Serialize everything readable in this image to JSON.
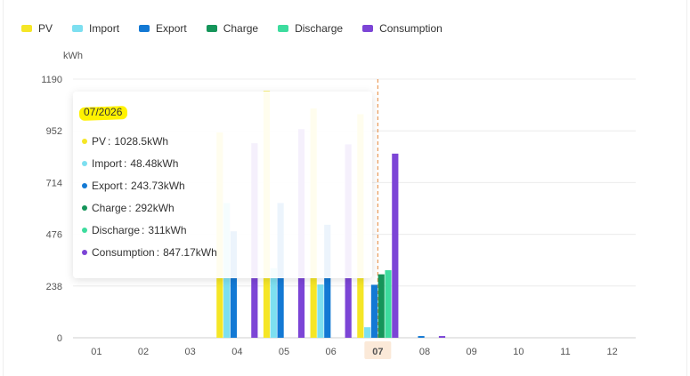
{
  "legend": [
    {
      "name": "PV",
      "color": "#f5e626"
    },
    {
      "name": "Import",
      "color": "#7ddff0"
    },
    {
      "name": "Export",
      "color": "#1379d4"
    },
    {
      "name": "Charge",
      "color": "#15955a"
    },
    {
      "name": "Discharge",
      "color": "#3ddc9e"
    },
    {
      "name": "Consumption",
      "color": "#7c45d6"
    }
  ],
  "tooltip": {
    "title": "07/2026",
    "rows": [
      {
        "label": "PV",
        "value": "1028.5kWh",
        "color": "#f5e626"
      },
      {
        "label": "Import",
        "value": "48.48kWh",
        "color": "#7ddff0"
      },
      {
        "label": "Export",
        "value": "243.73kWh",
        "color": "#1379d4"
      },
      {
        "label": "Charge",
        "value": "292kWh",
        "color": "#15955a"
      },
      {
        "label": "Discharge",
        "value": "311kWh",
        "color": "#3ddc9e"
      },
      {
        "label": "Consumption",
        "value": "847.17kWh",
        "color": "#7c45d6"
      }
    ]
  },
  "chart_data": {
    "type": "bar",
    "ylabel": "kWh",
    "ylim": [
      0,
      1190
    ],
    "yticks": [
      "0",
      "238",
      "476",
      "714",
      "952",
      "1190"
    ],
    "categories": [
      "01",
      "02",
      "03",
      "04",
      "05",
      "06",
      "07",
      "08",
      "09",
      "10",
      "11",
      "12"
    ],
    "highlight_category": "07",
    "series": [
      {
        "name": "PV",
        "color": "#f5e626",
        "values": [
          0,
          0,
          0,
          945,
          1135,
          1055,
          1028.5,
          0,
          0,
          0,
          0,
          0
        ]
      },
      {
        "name": "Import",
        "color": "#7ddff0",
        "values": [
          0,
          0,
          0,
          620,
          320,
          245,
          48.48,
          0,
          0,
          0,
          0,
          0
        ]
      },
      {
        "name": "Export",
        "color": "#1379d4",
        "values": [
          0,
          0,
          0,
          490,
          620,
          520,
          243.73,
          8,
          0,
          0,
          0,
          0
        ]
      },
      {
        "name": "Charge",
        "color": "#15955a",
        "values": [
          0,
          0,
          0,
          0,
          0,
          0,
          292,
          0,
          0,
          0,
          0,
          0
        ]
      },
      {
        "name": "Discharge",
        "color": "#3ddc9e",
        "values": [
          0,
          0,
          0,
          0,
          0,
          0,
          311,
          0,
          0,
          0,
          0,
          0
        ]
      },
      {
        "name": "Consumption",
        "color": "#7c45d6",
        "values": [
          0,
          0,
          0,
          895,
          960,
          890,
          847.17,
          8,
          0,
          0,
          0,
          0
        ]
      }
    ]
  }
}
